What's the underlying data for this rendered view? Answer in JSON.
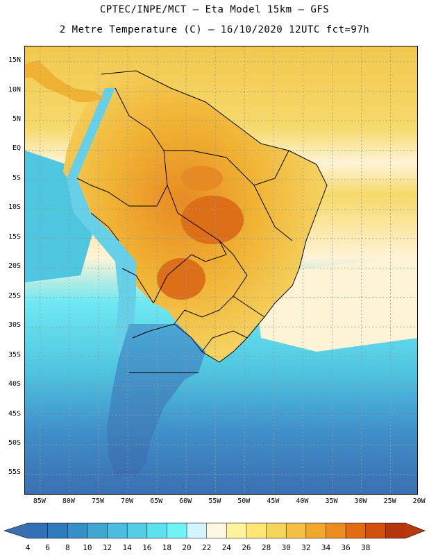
{
  "title_line1": "CPTEC/INPE/MCT –  Eta Model 15km – GFS",
  "title_line2": "2 Metre Temperature (C) – 16/10/2020 12UTC fct=97h",
  "lat_labels": [
    "15N",
    "10N",
    "5N",
    "EQ",
    "5S",
    "10S",
    "15S",
    "20S",
    "25S",
    "30S",
    "35S",
    "40S",
    "45S",
    "50S",
    "55S"
  ],
  "lon_labels": [
    "85W",
    "80W",
    "75W",
    "70W",
    "65W",
    "60W",
    "55W",
    "50W",
    "45W",
    "40W",
    "35W",
    "30W",
    "25W",
    "20W"
  ],
  "colorbar": {
    "levels": [
      "4",
      "6",
      "8",
      "10",
      "12",
      "14",
      "16",
      "18",
      "20",
      "22",
      "24",
      "26",
      "28",
      "30",
      "32",
      "34",
      "36",
      "38"
    ],
    "colors": [
      "#3270b8",
      "#2f7cbd",
      "#3690c8",
      "#42a6d3",
      "#4cbcdf",
      "#56cde6",
      "#5ee0ee",
      "#6ff3f7",
      "#d2f4fb",
      "#fff8e1",
      "#fff29c",
      "#fde676",
      "#f6d55a",
      "#f3c043",
      "#f0a82a",
      "#ec8b1f",
      "#e36b14",
      "#d24f0c",
      "#b5360a"
    ],
    "low_arrow_color": "#3a6fb0",
    "high_arrow_color": "#b83a0c"
  },
  "map_colors": {
    "ocean_south_deep": "#3a6fb0",
    "ocean_south_mid": "#3f8fc9",
    "ocean_mid": "#4fc6e0",
    "ocean_cyan": "#6ee8f2",
    "ocean_pale": "#fff3d6",
    "ocean_tropical": "#f6d96a",
    "ocean_tropical_warm": "#f1c84d",
    "land_warm": "#f0b232",
    "land_hot": "#e88a22",
    "land_hottest": "#dc6f18",
    "andes": "#4aa6d4",
    "andes_high": "#66d0e9",
    "patagonia": "#3e8ec6",
    "boundary": "#000000",
    "grid": "#9a9a9a"
  }
}
